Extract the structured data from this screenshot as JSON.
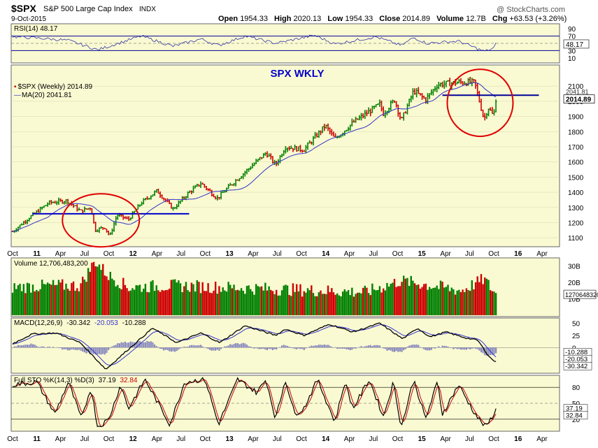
{
  "header": {
    "symbol": "$SPX",
    "name": "S&P 500 Large Cap Index",
    "exchange": "INDX",
    "date": "9-Oct-2015",
    "watermark": "@ StockCharts.com",
    "quote": {
      "open_label": "Open",
      "open": "1954.33",
      "high_label": "High",
      "high": "2020.13",
      "low_label": "Low",
      "low": "1954.33",
      "close_label": "Close",
      "close": "2014.89",
      "volume_label": "Volume",
      "volume": "12.7B",
      "chg_label": "Chg",
      "chg": "+63.53 (+3.26%)"
    }
  },
  "colors": {
    "panel_bg": "#fafad2",
    "up": "#008000",
    "down": "#cc0000",
    "line_blue": "#000099",
    "ma_blue": "#3333cc",
    "annot_red": "#e00000",
    "annot_blue": "#0000cc",
    "grid": "#d8d8b0"
  },
  "chart_data": {
    "type": "line",
    "title": "SPX WKLY",
    "x_axis": {
      "labels": [
        "Oct",
        "11",
        "Apr",
        "Jul",
        "Oct",
        "12",
        "Apr",
        "Jul",
        "Oct",
        "13",
        "Apr",
        "Jul",
        "Oct",
        "14",
        "Apr",
        "Jul",
        "Oct",
        "15",
        "Apr",
        "Jul",
        "Oct",
        "16",
        "Apr"
      ],
      "bold_labels": [
        "11",
        "12",
        "13",
        "14",
        "15",
        "16"
      ]
    },
    "price_panel": {
      "legend_price": "$SPX (Weekly) 2014.89",
      "legend_ma": "MA(20) 2041.81",
      "ylim": [
        1050,
        2230
      ],
      "yticks": [
        "2100",
        "2000",
        "1900",
        "1800",
        "1700",
        "1600",
        "1500",
        "1400",
        "1300",
        "1200",
        "1100"
      ],
      "last_close_label": "2014.89",
      "ma_label": "2041.81",
      "anchors": [
        {
          "date": "2010-10-01",
          "y": 1140
        },
        {
          "date": "2010-12-01",
          "y": 1230
        },
        {
          "date": "2011-02-15",
          "y": 1330
        },
        {
          "date": "2011-04-25",
          "y": 1345
        },
        {
          "date": "2011-06-15",
          "y": 1275
        },
        {
          "date": "2011-07-25",
          "y": 1300
        },
        {
          "date": "2011-08-10",
          "y": 1150
        },
        {
          "date": "2011-09-15",
          "y": 1170
        },
        {
          "date": "2011-10-05",
          "y": 1110
        },
        {
          "date": "2011-11-01",
          "y": 1250
        },
        {
          "date": "2011-12-15",
          "y": 1220
        },
        {
          "date": "2012-02-01",
          "y": 1330
        },
        {
          "date": "2012-04-01",
          "y": 1410
        },
        {
          "date": "2012-06-01",
          "y": 1290
        },
        {
          "date": "2012-08-01",
          "y": 1400
        },
        {
          "date": "2012-09-15",
          "y": 1460
        },
        {
          "date": "2012-11-15",
          "y": 1360
        },
        {
          "date": "2013-01-01",
          "y": 1440
        },
        {
          "date": "2013-05-20",
          "y": 1660
        },
        {
          "date": "2013-06-25",
          "y": 1580
        },
        {
          "date": "2013-08-01",
          "y": 1700
        },
        {
          "date": "2013-10-10",
          "y": 1680
        },
        {
          "date": "2013-12-31",
          "y": 1840
        },
        {
          "date": "2014-02-05",
          "y": 1750
        },
        {
          "date": "2014-04-15",
          "y": 1860
        },
        {
          "date": "2014-07-25",
          "y": 1980
        },
        {
          "date": "2014-08-08",
          "y": 1920
        },
        {
          "date": "2014-09-20",
          "y": 2010
        },
        {
          "date": "2014-10-15",
          "y": 1870
        },
        {
          "date": "2014-12-01",
          "y": 2070
        },
        {
          "date": "2015-01-15",
          "y": 2010
        },
        {
          "date": "2015-03-01",
          "y": 2110
        },
        {
          "date": "2015-05-20",
          "y": 2125
        },
        {
          "date": "2015-07-20",
          "y": 2125
        },
        {
          "date": "2015-08-25",
          "y": 1880
        },
        {
          "date": "2015-09-10",
          "y": 1960
        },
        {
          "date": "2015-09-30",
          "y": 1900
        },
        {
          "date": "2015-10-09",
          "y": 2014.89
        }
      ]
    },
    "annotations": {
      "support_2011": {
        "start": "2010-12-15",
        "end": "2012-08-01",
        "y": 1258
      },
      "resistance_2015": {
        "start": "2015-03-20",
        "end": "2016-03-20",
        "y": 2040
      },
      "circle_2011": {
        "center": "2011-09-01",
        "y": 1215
      },
      "circle_2015": {
        "center": "2015-08-10",
        "y": 1990
      }
    },
    "rsi_panel": {
      "legend": "RSI(14) 48.17",
      "levels": [
        "90",
        "70",
        "30",
        "10"
      ],
      "last_label": "48.17",
      "anchors": [
        {
          "date": "2010-10-01",
          "y": 68
        },
        {
          "date": "2011-01-15",
          "y": 64
        },
        {
          "date": "2011-05-01",
          "y": 58
        },
        {
          "date": "2011-08-20",
          "y": 32
        },
        {
          "date": "2011-10-15",
          "y": 45
        },
        {
          "date": "2012-02-01",
          "y": 70
        },
        {
          "date": "2012-06-01",
          "y": 42
        },
        {
          "date": "2012-09-15",
          "y": 62
        },
        {
          "date": "2012-11-20",
          "y": 44
        },
        {
          "date": "2013-03-01",
          "y": 70
        },
        {
          "date": "2013-06-25",
          "y": 50
        },
        {
          "date": "2013-11-20",
          "y": 72
        },
        {
          "date": "2014-02-05",
          "y": 48
        },
        {
          "date": "2014-07-10",
          "y": 68
        },
        {
          "date": "2014-10-15",
          "y": 44
        },
        {
          "date": "2014-12-01",
          "y": 66
        },
        {
          "date": "2015-01-20",
          "y": 50
        },
        {
          "date": "2015-05-20",
          "y": 56
        },
        {
          "date": "2015-08-25",
          "y": 28
        },
        {
          "date": "2015-09-30",
          "y": 36
        },
        {
          "date": "2015-10-09",
          "y": 48.17
        }
      ]
    },
    "volume_panel": {
      "legend": "Volume 12,706,483,200",
      "yticks": [
        "30B",
        "20B",
        "10B"
      ],
      "ylim": [
        0,
        34
      ],
      "last_label": "12706483200",
      "anchors": [
        {
          "date": "2010-10-01",
          "y": 17
        },
        {
          "date": "2011-03-01",
          "y": 18
        },
        {
          "date": "2011-06-15",
          "y": 18
        },
        {
          "date": "2011-08-10",
          "y": 33
        },
        {
          "date": "2011-10-01",
          "y": 24
        },
        {
          "date": "2011-12-15",
          "y": 17
        },
        {
          "date": "2012-06-01",
          "y": 18
        },
        {
          "date": "2012-12-01",
          "y": 17
        },
        {
          "date": "2013-06-01",
          "y": 16
        },
        {
          "date": "2014-06-01",
          "y": 14
        },
        {
          "date": "2014-10-15",
          "y": 21
        },
        {
          "date": "2015-06-01",
          "y": 15
        },
        {
          "date": "2015-08-25",
          "y": 22
        },
        {
          "date": "2015-10-09",
          "y": 12.7
        }
      ]
    },
    "macd_panel": {
      "legend_label": "MACD(12,26,9)",
      "legend_macd": "-30.342",
      "legend_signal": "-20.053",
      "legend_hist": "-10.288",
      "yticks": [
        "50",
        "25",
        "0",
        "-25"
      ],
      "ylim": [
        -50,
        58
      ],
      "last_labels": [
        "-10.288",
        "-20.053",
        "-30.342"
      ],
      "anchors": [
        {
          "date": "2010-10-01",
          "y": 8
        },
        {
          "date": "2010-12-15",
          "y": 28
        },
        {
          "date": "2011-03-15",
          "y": 30
        },
        {
          "date": "2011-06-15",
          "y": 10
        },
        {
          "date": "2011-09-20",
          "y": -45
        },
        {
          "date": "2011-12-01",
          "y": -10
        },
        {
          "date": "2012-03-15",
          "y": 40
        },
        {
          "date": "2012-06-15",
          "y": 10
        },
        {
          "date": "2012-09-15",
          "y": 30
        },
        {
          "date": "2012-11-25",
          "y": 10
        },
        {
          "date": "2013-03-01",
          "y": 45
        },
        {
          "date": "2013-06-25",
          "y": 25
        },
        {
          "date": "2013-08-01",
          "y": 38
        },
        {
          "date": "2013-10-10",
          "y": 25
        },
        {
          "date": "2014-01-15",
          "y": 48
        },
        {
          "date": "2014-04-15",
          "y": 32
        },
        {
          "date": "2014-07-25",
          "y": 50
        },
        {
          "date": "2014-10-20",
          "y": 18
        },
        {
          "date": "2014-12-15",
          "y": 40
        },
        {
          "date": "2015-02-01",
          "y": 22
        },
        {
          "date": "2015-04-01",
          "y": 32
        },
        {
          "date": "2015-06-15",
          "y": 20
        },
        {
          "date": "2015-08-01",
          "y": 15
        },
        {
          "date": "2015-09-15",
          "y": -20
        },
        {
          "date": "2015-10-09",
          "y": -30.3
        }
      ]
    },
    "sto_panel": {
      "legend_label": "Full STO %K(14,3) %D(3)",
      "legend_k": "37.19",
      "legend_d": "32.84",
      "yticks": [
        "80",
        "50",
        "20"
      ],
      "ylim": [
        0,
        100
      ],
      "last_labels": [
        "37.19",
        "32.84"
      ],
      "anchors": [
        {
          "date": "2010-10-01",
          "y": 85
        },
        {
          "date": "2011-01-01",
          "y": 90
        },
        {
          "date": "2011-03-10",
          "y": 30
        },
        {
          "date": "2011-05-01",
          "y": 90
        },
        {
          "date": "2011-06-20",
          "y": 20
        },
        {
          "date": "2011-07-25",
          "y": 80
        },
        {
          "date": "2011-08-20",
          "y": 5
        },
        {
          "date": "2011-10-01",
          "y": 20
        },
        {
          "date": "2011-11-15",
          "y": 85
        },
        {
          "date": "2011-12-15",
          "y": 40
        },
        {
          "date": "2012-02-15",
          "y": 95
        },
        {
          "date": "2012-05-20",
          "y": 10
        },
        {
          "date": "2012-07-15",
          "y": 90
        },
        {
          "date": "2012-10-01",
          "y": 95
        },
        {
          "date": "2012-11-20",
          "y": 10
        },
        {
          "date": "2013-02-01",
          "y": 95
        },
        {
          "date": "2013-04-15",
          "y": 70
        },
        {
          "date": "2013-05-20",
          "y": 95
        },
        {
          "date": "2013-06-25",
          "y": 20
        },
        {
          "date": "2013-08-01",
          "y": 95
        },
        {
          "date": "2013-09-05",
          "y": 30
        },
        {
          "date": "2013-10-10",
          "y": 40
        },
        {
          "date": "2013-12-01",
          "y": 95
        },
        {
          "date": "2014-02-05",
          "y": 15
        },
        {
          "date": "2014-03-15",
          "y": 90
        },
        {
          "date": "2014-04-15",
          "y": 40
        },
        {
          "date": "2014-06-15",
          "y": 95
        },
        {
          "date": "2014-08-08",
          "y": 25
        },
        {
          "date": "2014-09-15",
          "y": 90
        },
        {
          "date": "2014-10-15",
          "y": 5
        },
        {
          "date": "2014-12-01",
          "y": 95
        },
        {
          "date": "2015-01-15",
          "y": 20
        },
        {
          "date": "2015-03-01",
          "y": 90
        },
        {
          "date": "2015-03-20",
          "y": 30
        },
        {
          "date": "2015-05-20",
          "y": 85
        },
        {
          "date": "2015-07-10",
          "y": 40
        },
        {
          "date": "2015-08-05",
          "y": 20
        },
        {
          "date": "2015-09-01",
          "y": 5
        },
        {
          "date": "2015-10-09",
          "y": 37.19
        }
      ]
    }
  }
}
